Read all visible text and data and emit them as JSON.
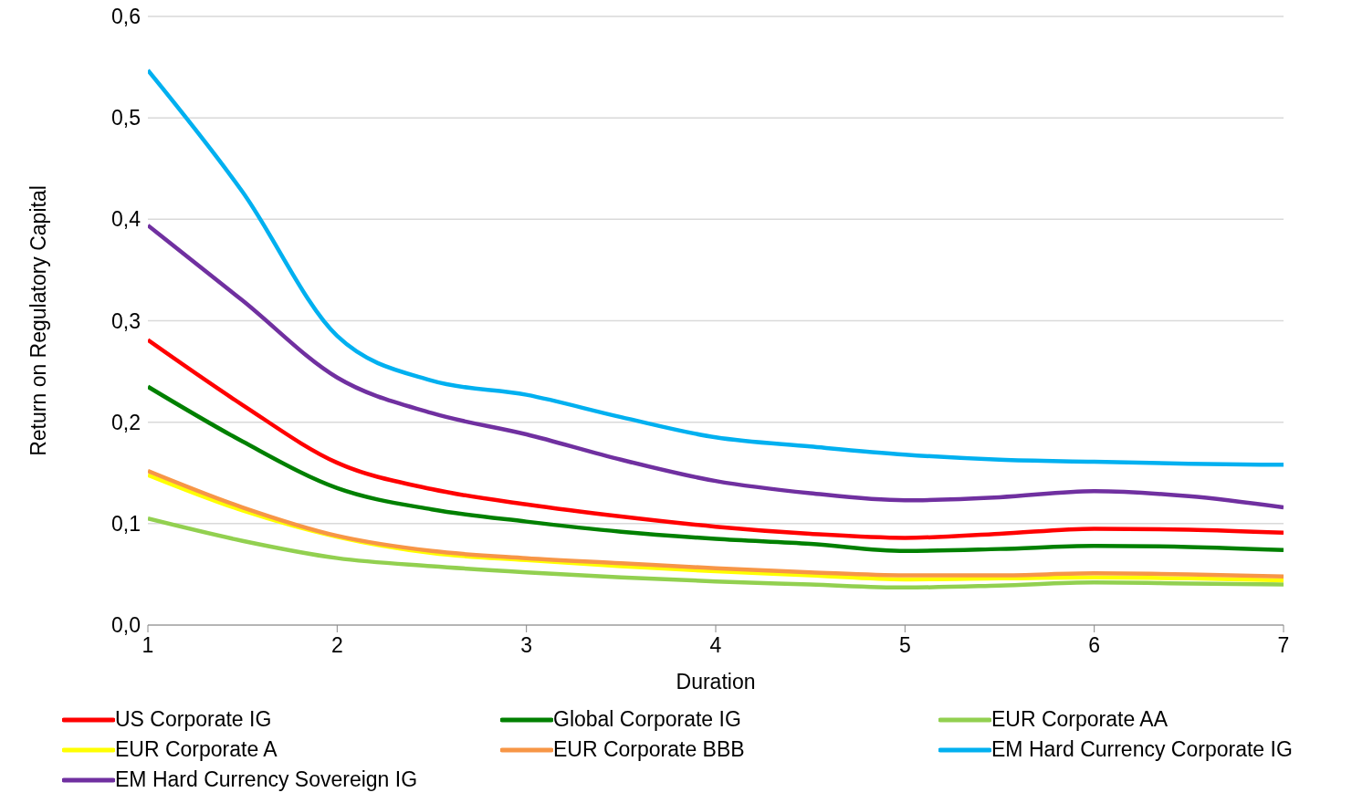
{
  "chart_data": {
    "type": "line",
    "xlabel": "Duration",
    "ylabel": "Return on Regulatory Capital",
    "x": [
      1,
      1.5,
      2,
      2.5,
      3,
      3.5,
      4,
      4.5,
      5,
      5.5,
      6,
      6.5,
      7
    ],
    "xlim": [
      1,
      7
    ],
    "xticks": [
      1,
      2,
      3,
      4,
      5,
      6,
      7
    ],
    "ylim": [
      0,
      0.6
    ],
    "yticks": [
      {
        "value": 0,
        "label": "0,0"
      },
      {
        "value": 0.1,
        "label": "0,1"
      },
      {
        "value": 0.2,
        "label": "0,2"
      },
      {
        "value": 0.3,
        "label": "0,3"
      },
      {
        "value": 0.4,
        "label": "0,4"
      },
      {
        "value": 0.5,
        "label": "0,5"
      },
      {
        "value": 0.6,
        "label": "0,6"
      }
    ],
    "grid": "y",
    "legend": "bottom",
    "marker": "none",
    "line_style": "solid",
    "series": [
      {
        "name": "US Corporate IG",
        "color": "#ff0000",
        "values": [
          0.281,
          0.217,
          0.16,
          0.134,
          0.119,
          0.107,
          0.097,
          0.09,
          0.086,
          0.09,
          0.095,
          0.094,
          0.091
        ]
      },
      {
        "name": "Global Corporate IG",
        "color": "#008000",
        "values": [
          0.235,
          0.181,
          0.135,
          0.114,
          0.102,
          0.092,
          0.085,
          0.08,
          0.073,
          0.075,
          0.078,
          0.077,
          0.074
        ]
      },
      {
        "name": "EUR Corporate AA",
        "color": "#92d050",
        "values": [
          0.105,
          0.083,
          0.066,
          0.058,
          0.052,
          0.047,
          0.043,
          0.04,
          0.037,
          0.039,
          0.042,
          0.041,
          0.04
        ]
      },
      {
        "name": "EUR Corporate A",
        "color": "#ffff00",
        "values": [
          0.148,
          0.113,
          0.087,
          0.071,
          0.064,
          0.058,
          0.053,
          0.049,
          0.045,
          0.046,
          0.047,
          0.046,
          0.044
        ]
      },
      {
        "name": "EUR Corporate BBB",
        "color": "#f79646",
        "values": [
          0.152,
          0.116,
          0.088,
          0.073,
          0.066,
          0.061,
          0.056,
          0.052,
          0.049,
          0.049,
          0.051,
          0.05,
          0.048
        ]
      },
      {
        "name": "EM Hard Currency Corporate IG",
        "color": "#00b0f0",
        "values": [
          0.547,
          0.427,
          0.285,
          0.241,
          0.227,
          0.205,
          0.185,
          0.176,
          0.168,
          0.163,
          0.161,
          0.159,
          0.158
        ]
      },
      {
        "name": "EM Hard Currency Sovereign IG",
        "color": "#7030a0",
        "values": [
          0.394,
          0.32,
          0.244,
          0.209,
          0.188,
          0.163,
          0.142,
          0.13,
          0.123,
          0.126,
          0.132,
          0.127,
          0.116
        ]
      }
    ]
  }
}
